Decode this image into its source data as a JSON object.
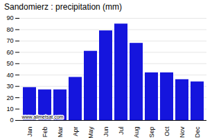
{
  "chart_data": {
    "type": "bar",
    "title": "Sandomierz : precipitation (mm)",
    "categories": [
      "Jan",
      "Feb",
      "Mar",
      "Apr",
      "May",
      "Jun",
      "Jul",
      "Aug",
      "Sep",
      "Oct",
      "Nov",
      "Dec"
    ],
    "values": [
      29,
      27,
      27,
      38,
      61,
      79,
      85,
      68,
      42,
      42,
      36,
      34
    ],
    "color": "#1515dd",
    "ylim": [
      0,
      90
    ],
    "yticks": [
      0,
      10,
      20,
      30,
      40,
      50,
      60,
      70,
      80,
      90
    ],
    "grid": true,
    "annotation": "www.allmetsat.com"
  }
}
